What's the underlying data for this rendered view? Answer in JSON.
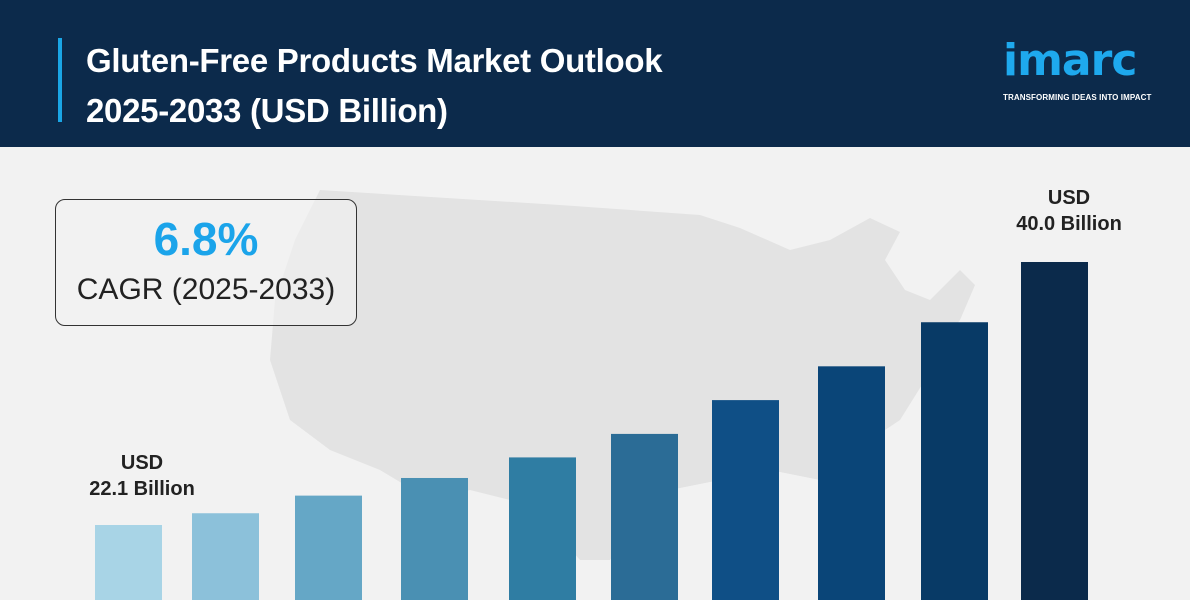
{
  "header": {
    "title_line1": "Gluten-Free Products Market Outlook",
    "title_line2": "2025-2033 (USD Billion)"
  },
  "logo": {
    "word": "imarc",
    "tagline": "TRANSFORMING IDEAS INTO IMPACT"
  },
  "cagr": {
    "value": "6.8%",
    "label": "CAGR (2025-2033)"
  },
  "chart_data": {
    "type": "bar",
    "title": "Gluten-Free Products Market Outlook 2025-2033 (USD Billion)",
    "values": [
      22.1,
      22.9,
      24.1,
      25.3,
      26.7,
      28.3,
      30.6,
      32.9,
      35.9,
      40.0
    ],
    "colors": [
      "#a8d4e6",
      "#8cc1da",
      "#65a7c6",
      "#4a90b3",
      "#2f7da3",
      "#2b6c96",
      "#0f4f86",
      "#0a4578",
      "#083a66",
      "#0b2a4b"
    ],
    "annotations": [
      {
        "bar": 0,
        "line1": "USD",
        "line2": "22.1 Billion"
      },
      {
        "bar": 9,
        "line1": "USD",
        "line2": "40.0 Billion"
      }
    ],
    "grid": false,
    "legend": "none"
  }
}
